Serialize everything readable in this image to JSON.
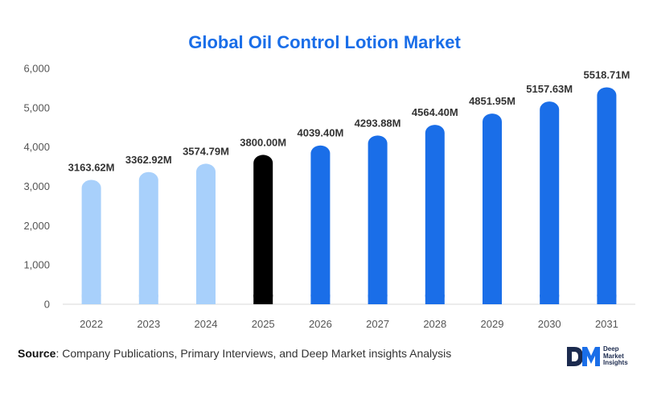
{
  "chart_data": {
    "type": "bar",
    "title": "Global Oil Control Lotion Market",
    "categories": [
      "2022",
      "2023",
      "2024",
      "2025",
      "2026",
      "2027",
      "2028",
      "2029",
      "2030",
      "2031"
    ],
    "values": [
      3163.62,
      3362.92,
      3574.79,
      3800.0,
      4039.4,
      4293.88,
      4564.4,
      4851.95,
      5157.63,
      5518.71
    ],
    "data_labels": [
      "3163.62M",
      "3362.92M",
      "3574.79M",
      "3800.00M",
      "4039.40M",
      "4293.88M",
      "4564.40M",
      "4851.95M",
      "5157.63M",
      "5518.71M"
    ],
    "bar_colors": [
      "#a8d0fb",
      "#a8d0fb",
      "#a8d0fb",
      "#000000",
      "#1a6ee8",
      "#1a6ee8",
      "#1a6ee8",
      "#1a6ee8",
      "#1a6ee8",
      "#1a6ee8"
    ],
    "ylim": [
      0,
      6000
    ],
    "yticks": [
      0,
      1000,
      2000,
      3000,
      4000,
      5000,
      6000
    ],
    "ytick_labels": [
      "0",
      "1,000",
      "2,000",
      "3,000",
      "4,000",
      "5,000",
      "6,000"
    ],
    "xlabel": "",
    "ylabel": "",
    "grid": false,
    "legend": "none"
  },
  "source": {
    "label": "Source",
    "text": ": Company Publications, Primary Interviews, and Deep Market insights Analysis"
  },
  "logo": {
    "lines": [
      "Deep",
      "Market",
      "Insights"
    ],
    "colors": {
      "navy": "#1b2a4e",
      "blue": "#1a6ee8"
    }
  }
}
